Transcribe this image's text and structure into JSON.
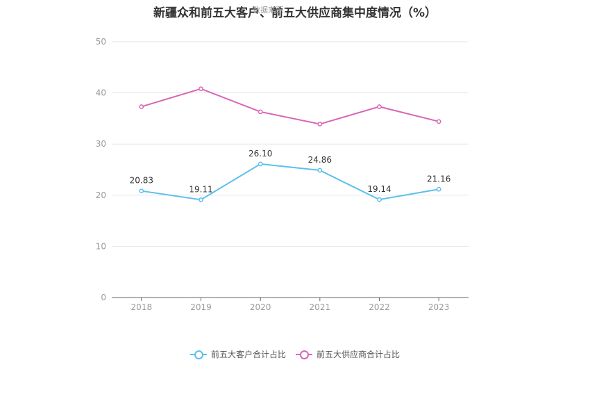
{
  "title": "新疆众和前五大客户、前五大供应商集中度情况（%）",
  "source_label": "数据来源：",
  "colors": {
    "customers": "#5bc0eb",
    "suppliers": "#d966b5",
    "axis": "#999999",
    "grid": "#e6e6e6"
  },
  "chart_data": {
    "type": "line",
    "title": "新疆众和前五大客户、前五大供应商集中度情况（%）",
    "xlabel": "",
    "ylabel": "",
    "categories": [
      "2018",
      "2019",
      "2020",
      "2021",
      "2022",
      "2023"
    ],
    "yticks": [
      0,
      10,
      20,
      30,
      40,
      50
    ],
    "ylim": [
      0,
      50
    ],
    "grid": true,
    "legend_position": "bottom",
    "series": [
      {
        "name": "前五大客户合计占比",
        "values": [
          20.83,
          19.11,
          26.1,
          24.86,
          19.14,
          21.16
        ],
        "labels": [
          "20.83",
          "19.11",
          "26.10",
          "24.86",
          "19.14",
          "21.16"
        ],
        "show_labels": true
      },
      {
        "name": "前五大供应商合计占比",
        "values": [
          37.3,
          40.8,
          36.3,
          33.9,
          37.3,
          34.4
        ],
        "show_labels": false
      }
    ]
  }
}
